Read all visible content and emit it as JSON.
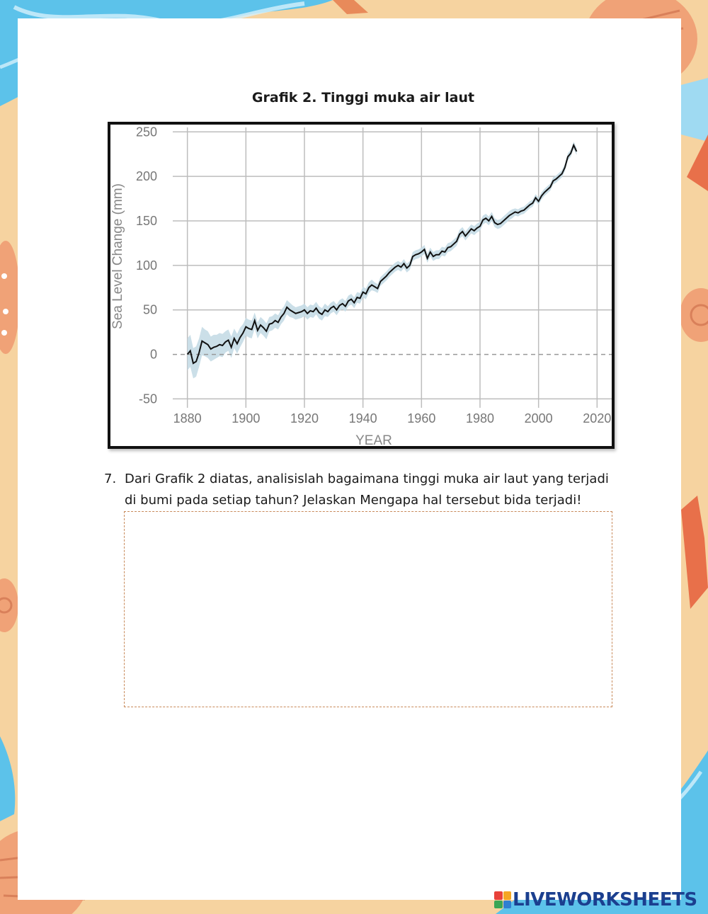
{
  "worksheet": {
    "title": "Grafik 2. Tinggi muka air laut",
    "question_number": "7.",
    "question_text": "Dari Grafik 2 diatas, analisislah bagaimana tinggi muka air laut yang terjadi di bumi pada setiap tahun? Jelaskan Mengapa hal tersebut bida terjadi!",
    "answer_value": ""
  },
  "brand": {
    "logo_text": "LIVEWORKSHEETS",
    "logo_color": "#1b3f8f",
    "mark_colors": [
      "#e8423a",
      "#f5a623",
      "#3aa655",
      "#2f7fd1"
    ]
  },
  "theme": {
    "background": "#f6d3a0",
    "water": "#5cc2ea",
    "shell": "#f0a277",
    "line": "#111111",
    "band": "#c5dbe6",
    "grid": "#bdbdbd"
  },
  "chart_data": {
    "type": "line",
    "title": "",
    "xlabel": "YEAR",
    "ylabel": "Sea Level Change (mm)",
    "xlim": [
      1875,
      2025
    ],
    "ylim": [
      -60,
      255
    ],
    "xticks": [
      1880,
      1900,
      1920,
      1940,
      1960,
      1980,
      2000,
      2020
    ],
    "yticks": [
      -50,
      0,
      50,
      100,
      150,
      200,
      250
    ],
    "grid": true,
    "zero_line": "dashed",
    "series": [
      {
        "x": [
          1880,
          1881,
          1882,
          1883,
          1884,
          1885,
          1886,
          1887,
          1888,
          1889,
          1890,
          1891,
          1892,
          1893,
          1894,
          1895,
          1896,
          1897,
          1898,
          1899,
          1900,
          1901,
          1902,
          1903,
          1904,
          1905,
          1906,
          1907,
          1908,
          1909,
          1910,
          1911,
          1912,
          1913,
          1914,
          1915,
          1916,
          1917,
          1918,
          1919,
          1920,
          1921,
          1922,
          1923,
          1924,
          1925,
          1926,
          1927,
          1928,
          1929,
          1930,
          1931,
          1932,
          1933,
          1934,
          1935,
          1936,
          1937,
          1938,
          1939,
          1940,
          1941,
          1942,
          1943,
          1944,
          1945,
          1946,
          1947,
          1948,
          1949,
          1950,
          1951,
          1952,
          1953,
          1954,
          1955,
          1956,
          1957,
          1958,
          1959,
          1960,
          1961,
          1962,
          1963,
          1964,
          1965,
          1966,
          1967,
          1968,
          1969,
          1970,
          1971,
          1972,
          1973,
          1974,
          1975,
          1976,
          1977,
          1978,
          1979,
          1980,
          1981,
          1982,
          1983,
          1984,
          1985,
          1986,
          1987,
          1988,
          1989,
          1990,
          1991,
          1992,
          1993,
          1994,
          1995,
          1996,
          1997,
          1998,
          1999,
          2000,
          2001,
          2002,
          2003,
          2004,
          2005,
          2006,
          2007,
          2008,
          2009,
          2010,
          2011,
          2012,
          2013
        ],
        "y": [
          0,
          4,
          -10,
          -8,
          2,
          15,
          13,
          11,
          6,
          8,
          9,
          11,
          10,
          14,
          16,
          8,
          18,
          12,
          19,
          24,
          31,
          29,
          28,
          38,
          27,
          33,
          30,
          26,
          34,
          35,
          38,
          36,
          42,
          46,
          53,
          50,
          48,
          46,
          47,
          48,
          50,
          46,
          49,
          48,
          52,
          47,
          45,
          50,
          48,
          52,
          54,
          50,
          55,
          57,
          54,
          60,
          62,
          58,
          64,
          63,
          70,
          68,
          75,
          78,
          76,
          74,
          82,
          85,
          88,
          92,
          95,
          98,
          100,
          98,
          102,
          97,
          100,
          110,
          112,
          113,
          115,
          118,
          108,
          115,
          110,
          112,
          112,
          116,
          115,
          120,
          121,
          124,
          127,
          135,
          138,
          133,
          137,
          141,
          139,
          142,
          144,
          151,
          153,
          150,
          155,
          148,
          146,
          147,
          150,
          153,
          156,
          158,
          160,
          159,
          161,
          162,
          165,
          168,
          170,
          176,
          172,
          178,
          182,
          185,
          188,
          195,
          197,
          200,
          203,
          210,
          222,
          226,
          235,
          228
        ],
        "band_half_width": [
          18,
          18,
          17,
          17,
          16,
          16,
          15,
          15,
          14,
          14,
          13,
          13,
          13,
          12,
          12,
          12,
          11,
          11,
          11,
          10,
          10,
          10,
          10,
          9,
          9,
          9,
          9,
          9,
          8,
          8,
          8,
          8,
          8,
          8,
          8,
          8,
          7,
          7,
          7,
          7,
          7,
          7,
          7,
          7,
          7,
          7,
          7,
          7,
          6,
          6,
          6,
          6,
          6,
          6,
          6,
          6,
          6,
          6,
          6,
          6,
          6,
          6,
          6,
          6,
          5,
          5,
          5,
          5,
          5,
          5,
          5,
          5,
          5,
          5,
          5,
          5,
          5,
          5,
          5,
          5,
          5,
          5,
          5,
          5,
          5,
          5,
          5,
          5,
          5,
          5,
          5,
          5,
          5,
          5,
          5,
          5,
          5,
          5,
          5,
          5,
          5,
          5,
          5,
          5,
          5,
          5,
          5,
          5,
          5,
          5,
          5,
          5,
          4,
          4,
          4,
          4,
          4,
          4,
          4,
          4,
          4,
          4,
          4,
          4,
          4,
          4,
          4,
          4,
          4,
          4,
          4,
          4,
          4,
          4
        ]
      }
    ]
  }
}
